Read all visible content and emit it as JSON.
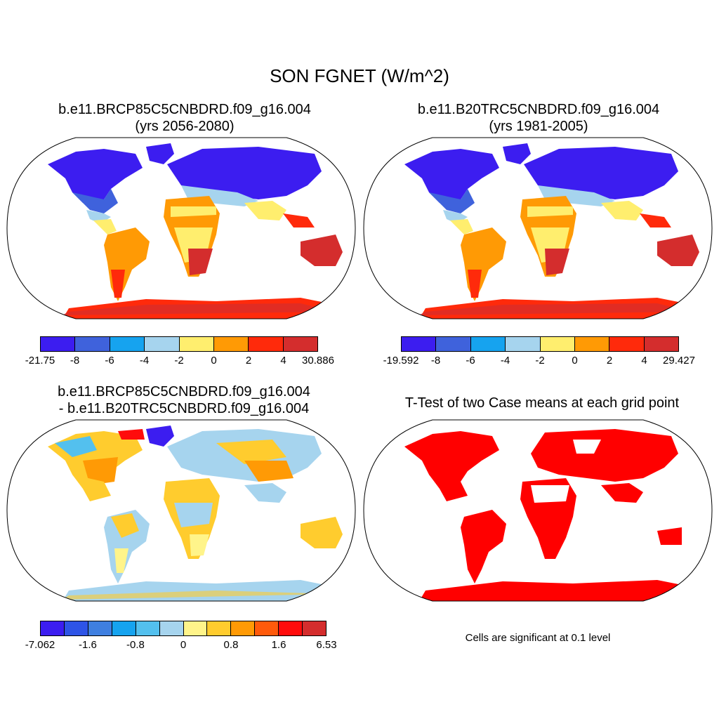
{
  "title": "SON FGNET (W/m^2)",
  "panels": {
    "p1": {
      "title": "b.e11.BRCP85C5CNBDRD.f09_g16.004",
      "subtitle": "(yrs 2056-2080)"
    },
    "p2": {
      "title": "b.e11.B20TRC5CNBDRD.f09_g16.004",
      "subtitle": "(yrs 1981-2005)"
    },
    "p3": {
      "title": "b.e11.BRCP85C5CNBDRD.f09_g16.004",
      "subtitle": "- b.e11.B20TRC5CNBDRD.f09_g16.004"
    },
    "p4": {
      "title": "T-Test of two Case means at each grid point",
      "note": "Cells are significant at 0.1 level"
    }
  },
  "colorbars": {
    "cb1": {
      "colors": [
        "#3c1df0",
        "#3f62dc",
        "#16a3ef",
        "#a6d4ee",
        "#ffee6e",
        "#ff9a05",
        "#ff2a0b",
        "#d42d2d"
      ],
      "labels": [
        "-21.75",
        "-8",
        "-6",
        "-4",
        "-2",
        "0",
        "2",
        "4",
        "30.886"
      ]
    },
    "cb2": {
      "colors": [
        "#3c1df0",
        "#3f62dc",
        "#16a3ef",
        "#a6d4ee",
        "#ffee6e",
        "#ff9a05",
        "#ff2a0b",
        "#d42d2d"
      ],
      "labels": [
        "-19.592",
        "-8",
        "-6",
        "-4",
        "-2",
        "0",
        "2",
        "4",
        "29.427"
      ]
    },
    "cb3": {
      "colors": [
        "#3c1df0",
        "#2e54e6",
        "#3f7fe0",
        "#16a3ef",
        "#53c0ee",
        "#a6d4ee",
        "#fff48a",
        "#ffcc2e",
        "#ff9a05",
        "#ff5a0b",
        "#ff0c0c",
        "#d42d2d"
      ],
      "labels": [
        "-7.062",
        "-1.6",
        "-0.8",
        "0",
        "0.8",
        "1.6",
        "6.53"
      ]
    }
  }
}
